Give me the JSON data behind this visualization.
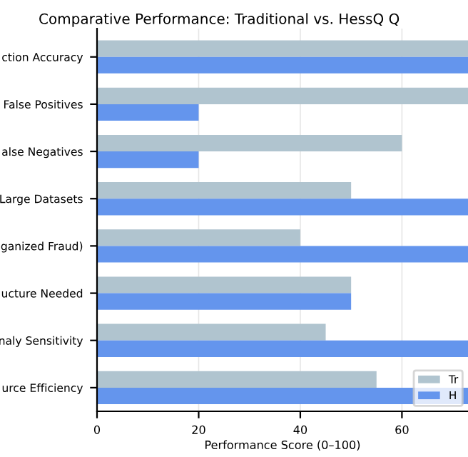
{
  "chart_data": {
    "type": "bar",
    "orientation": "horizontal",
    "title": "Comparative Performance: Traditional vs. HessQ Q",
    "xlabel": "Performance Score (0–100)",
    "categories": [
      "ction Accuracy",
      "False Positives",
      "alse Negatives",
      "Large Datasets",
      "ganized Fraud)",
      "ucture Needed",
      "naly Sensitivity",
      "urce Efficiency"
    ],
    "series": [
      {
        "name": "Tr",
        "color": "#b0c4cf",
        "values": [
          73,
          73,
          60,
          50,
          40,
          50,
          45,
          55
        ]
      },
      {
        "name": "H",
        "color": "#6495ed",
        "values": [
          73,
          20,
          20,
          73,
          73,
          50,
          73,
          73
        ]
      }
    ],
    "xlim": [
      0,
      73
    ],
    "xticks": [
      0,
      20,
      40,
      60
    ],
    "grid": "x",
    "legend": "bottom right"
  }
}
